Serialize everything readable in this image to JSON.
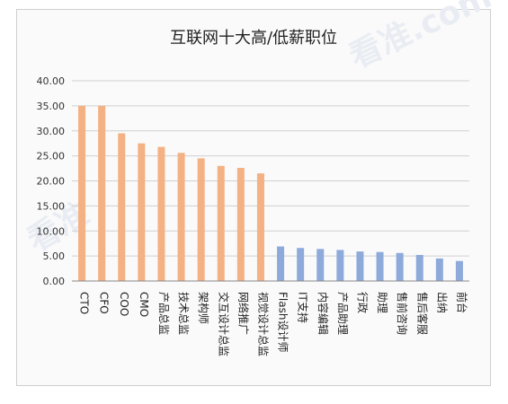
{
  "chart_data": {
    "type": "bar",
    "title": "互联网十大高/低薪职位",
    "ylim": [
      0,
      40
    ],
    "yticks": [
      "0.00",
      "5.00",
      "10.00",
      "15.00",
      "20.00",
      "25.00",
      "30.00",
      "35.00",
      "40.00"
    ],
    "grid": true,
    "categories": [
      "CTO",
      "CFO",
      "COO",
      "CMO",
      "产品总监",
      "技术总监",
      "架构师",
      "交互设计总监",
      "网络推广",
      "视觉设计总监",
      "Flash设计师",
      "IT支持",
      "内容编辑",
      "产品助理",
      "行政",
      "助理",
      "售前咨询",
      "售后客服",
      "出纳",
      "前台"
    ],
    "values": [
      35.0,
      35.0,
      29.5,
      27.5,
      26.8,
      25.6,
      24.5,
      23.0,
      22.6,
      21.5,
      6.9,
      6.6,
      6.4,
      6.2,
      5.9,
      5.8,
      5.6,
      5.2,
      4.5,
      4.0
    ],
    "colors": [
      "#f4b183",
      "#f4b183",
      "#f4b183",
      "#f4b183",
      "#f4b183",
      "#f4b183",
      "#f4b183",
      "#f4b183",
      "#f4b183",
      "#f4b183",
      "#8eaadb",
      "#8eaadb",
      "#8eaadb",
      "#8eaadb",
      "#8eaadb",
      "#8eaadb",
      "#8eaadb",
      "#8eaadb",
      "#8eaadb",
      "#8eaadb"
    ],
    "watermarks": [
      "看准",
      "看准.com"
    ]
  }
}
